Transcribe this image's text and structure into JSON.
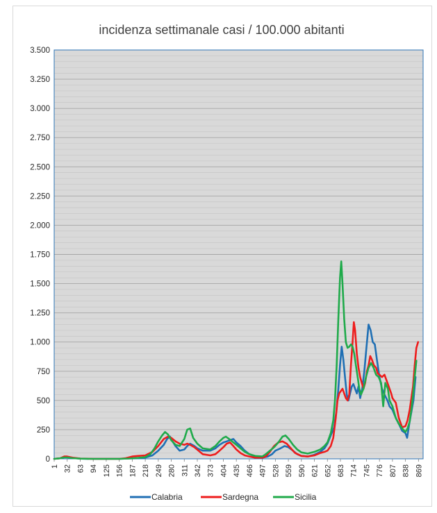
{
  "chart_data": {
    "type": "line",
    "title": "incidenza settimanale casi / 100.000 abitanti",
    "xlabel": "",
    "ylabel": "",
    "ylim": [
      0,
      3500
    ],
    "xlim": [
      1,
      880
    ],
    "y_ticks": [
      0,
      250,
      500,
      750,
      1000,
      1250,
      1500,
      1750,
      2000,
      2250,
      2500,
      2750,
      3000,
      3250,
      3500
    ],
    "y_tick_labels": [
      "0",
      "250",
      "500",
      "750",
      "1.000",
      "1.250",
      "1.500",
      "1.750",
      "2.000",
      "2.250",
      "2.500",
      "2.750",
      "3.000",
      "3.250",
      "3.500"
    ],
    "x_ticks": [
      1,
      32,
      63,
      94,
      125,
      156,
      187,
      218,
      249,
      280,
      311,
      342,
      373,
      404,
      435,
      466,
      497,
      528,
      559,
      590,
      621,
      652,
      683,
      714,
      745,
      776,
      807,
      838,
      869
    ],
    "x_tick_labels": [
      "1",
      "32",
      "63",
      "94",
      "125",
      "156",
      "187",
      "218",
      "249",
      "280",
      "311",
      "342",
      "373",
      "404",
      "435",
      "466",
      "497",
      "528",
      "559",
      "590",
      "621",
      "652",
      "683",
      "714",
      "745",
      "776",
      "807",
      "838",
      "869"
    ],
    "grid": true,
    "legend_position": "bottom",
    "series": [
      {
        "name": "Calabria",
        "color": "#1f6fb4",
        "points": [
          [
            1,
            0
          ],
          [
            15,
            5
          ],
          [
            25,
            15
          ],
          [
            32,
            15
          ],
          [
            45,
            8
          ],
          [
            63,
            2
          ],
          [
            94,
            0
          ],
          [
            125,
            0
          ],
          [
            156,
            0
          ],
          [
            180,
            3
          ],
          [
            200,
            5
          ],
          [
            218,
            10
          ],
          [
            235,
            30
          ],
          [
            249,
            70
          ],
          [
            262,
            120
          ],
          [
            270,
            170
          ],
          [
            277,
            190
          ],
          [
            283,
            150
          ],
          [
            290,
            110
          ],
          [
            300,
            70
          ],
          [
            311,
            80
          ],
          [
            318,
            110
          ],
          [
            325,
            130
          ],
          [
            335,
            110
          ],
          [
            342,
            90
          ],
          [
            355,
            70
          ],
          [
            373,
            70
          ],
          [
            385,
            90
          ],
          [
            395,
            120
          ],
          [
            404,
            140
          ],
          [
            412,
            150
          ],
          [
            420,
            160
          ],
          [
            428,
            170
          ],
          [
            435,
            140
          ],
          [
            445,
            110
          ],
          [
            455,
            70
          ],
          [
            466,
            40
          ],
          [
            480,
            20
          ],
          [
            497,
            10
          ],
          [
            510,
            20
          ],
          [
            520,
            40
          ],
          [
            528,
            70
          ],
          [
            540,
            90
          ],
          [
            550,
            110
          ],
          [
            559,
            100
          ],
          [
            570,
            70
          ],
          [
            580,
            40
          ],
          [
            590,
            25
          ],
          [
            605,
            20
          ],
          [
            621,
            35
          ],
          [
            635,
            60
          ],
          [
            645,
            90
          ],
          [
            652,
            130
          ],
          [
            660,
            200
          ],
          [
            668,
            270
          ],
          [
            673,
            400
          ],
          [
            678,
            600
          ],
          [
            682,
            800
          ],
          [
            686,
            960
          ],
          [
            690,
            850
          ],
          [
            694,
            700
          ],
          [
            698,
            550
          ],
          [
            702,
            500
          ],
          [
            706,
            560
          ],
          [
            710,
            620
          ],
          [
            714,
            640
          ],
          [
            718,
            600
          ],
          [
            722,
            560
          ],
          [
            726,
            620
          ],
          [
            730,
            520
          ],
          [
            735,
            600
          ],
          [
            740,
            750
          ],
          [
            745,
            950
          ],
          [
            750,
            1150
          ],
          [
            755,
            1100
          ],
          [
            760,
            1000
          ],
          [
            765,
            980
          ],
          [
            770,
            850
          ],
          [
            776,
            700
          ],
          [
            782,
            600
          ],
          [
            788,
            550
          ],
          [
            795,
            500
          ],
          [
            800,
            450
          ],
          [
            807,
            420
          ],
          [
            815,
            350
          ],
          [
            822,
            300
          ],
          [
            830,
            240
          ],
          [
            838,
            220
          ],
          [
            842,
            180
          ],
          [
            847,
            300
          ],
          [
            852,
            400
          ],
          [
            857,
            500
          ],
          [
            862,
            700
          ]
        ]
      },
      {
        "name": "Sardegna",
        "color": "#ee1c1c",
        "points": [
          [
            1,
            0
          ],
          [
            15,
            5
          ],
          [
            25,
            20
          ],
          [
            32,
            20
          ],
          [
            45,
            10
          ],
          [
            63,
            3
          ],
          [
            94,
            0
          ],
          [
            125,
            0
          ],
          [
            156,
            0
          ],
          [
            170,
            5
          ],
          [
            187,
            20
          ],
          [
            200,
            25
          ],
          [
            218,
            30
          ],
          [
            235,
            60
          ],
          [
            249,
            110
          ],
          [
            262,
            170
          ],
          [
            272,
            190
          ],
          [
            280,
            180
          ],
          [
            290,
            150
          ],
          [
            300,
            130
          ],
          [
            311,
            120
          ],
          [
            318,
            130
          ],
          [
            325,
            120
          ],
          [
            335,
            100
          ],
          [
            345,
            70
          ],
          [
            355,
            40
          ],
          [
            373,
            30
          ],
          [
            385,
            40
          ],
          [
            395,
            70
          ],
          [
            404,
            100
          ],
          [
            412,
            130
          ],
          [
            420,
            140
          ],
          [
            428,
            110
          ],
          [
            435,
            80
          ],
          [
            445,
            50
          ],
          [
            455,
            30
          ],
          [
            466,
            20
          ],
          [
            480,
            10
          ],
          [
            497,
            10
          ],
          [
            505,
            20
          ],
          [
            515,
            60
          ],
          [
            525,
            110
          ],
          [
            535,
            140
          ],
          [
            545,
            150
          ],
          [
            555,
            130
          ],
          [
            565,
            90
          ],
          [
            575,
            50
          ],
          [
            590,
            25
          ],
          [
            605,
            20
          ],
          [
            621,
            30
          ],
          [
            635,
            50
          ],
          [
            645,
            60
          ],
          [
            652,
            70
          ],
          [
            660,
            110
          ],
          [
            666,
            180
          ],
          [
            672,
            350
          ],
          [
            676,
            500
          ],
          [
            680,
            560
          ],
          [
            684,
            580
          ],
          [
            688,
            600
          ],
          [
            692,
            560
          ],
          [
            696,
            520
          ],
          [
            700,
            500
          ],
          [
            704,
            550
          ],
          [
            708,
            800
          ],
          [
            712,
            1000
          ],
          [
            715,
            1170
          ],
          [
            718,
            1100
          ],
          [
            722,
            900
          ],
          [
            726,
            780
          ],
          [
            730,
            700
          ],
          [
            734,
            650
          ],
          [
            738,
            600
          ],
          [
            742,
            650
          ],
          [
            746,
            750
          ],
          [
            750,
            800
          ],
          [
            754,
            880
          ],
          [
            758,
            850
          ],
          [
            763,
            800
          ],
          [
            768,
            780
          ],
          [
            772,
            730
          ],
          [
            776,
            720
          ],
          [
            782,
            700
          ],
          [
            788,
            720
          ],
          [
            795,
            650
          ],
          [
            800,
            600
          ],
          [
            804,
            560
          ],
          [
            807,
            520
          ],
          [
            815,
            480
          ],
          [
            822,
            350
          ],
          [
            830,
            270
          ],
          [
            838,
            280
          ],
          [
            843,
            330
          ],
          [
            848,
            420
          ],
          [
            852,
            520
          ],
          [
            856,
            620
          ],
          [
            860,
            800
          ],
          [
            864,
            950
          ],
          [
            868,
            1000
          ]
        ]
      },
      {
        "name": "Sicilia",
        "color": "#1faa4a",
        "points": [
          [
            1,
            0
          ],
          [
            15,
            5
          ],
          [
            25,
            12
          ],
          [
            32,
            12
          ],
          [
            45,
            6
          ],
          [
            63,
            2
          ],
          [
            94,
            0
          ],
          [
            125,
            0
          ],
          [
            156,
            0
          ],
          [
            180,
            3
          ],
          [
            200,
            8
          ],
          [
            218,
            15
          ],
          [
            230,
            40
          ],
          [
            240,
            90
          ],
          [
            249,
            150
          ],
          [
            258,
            200
          ],
          [
            265,
            230
          ],
          [
            272,
            210
          ],
          [
            280,
            160
          ],
          [
            290,
            120
          ],
          [
            300,
            110
          ],
          [
            311,
            170
          ],
          [
            318,
            250
          ],
          [
            325,
            260
          ],
          [
            332,
            180
          ],
          [
            342,
            130
          ],
          [
            355,
            90
          ],
          [
            373,
            80
          ],
          [
            385,
            110
          ],
          [
            395,
            150
          ],
          [
            404,
            180
          ],
          [
            410,
            190
          ],
          [
            418,
            170
          ],
          [
            428,
            140
          ],
          [
            435,
            120
          ],
          [
            445,
            90
          ],
          [
            455,
            60
          ],
          [
            466,
            40
          ],
          [
            480,
            25
          ],
          [
            497,
            20
          ],
          [
            505,
            40
          ],
          [
            515,
            70
          ],
          [
            525,
            100
          ],
          [
            535,
            140
          ],
          [
            545,
            190
          ],
          [
            552,
            200
          ],
          [
            560,
            170
          ],
          [
            570,
            120
          ],
          [
            580,
            80
          ],
          [
            590,
            55
          ],
          [
            605,
            45
          ],
          [
            621,
            60
          ],
          [
            635,
            80
          ],
          [
            645,
            110
          ],
          [
            652,
            140
          ],
          [
            660,
            220
          ],
          [
            666,
            330
          ],
          [
            670,
            500
          ],
          [
            674,
            800
          ],
          [
            678,
            1200
          ],
          [
            682,
            1550
          ],
          [
            685,
            1690
          ],
          [
            688,
            1500
          ],
          [
            692,
            1200
          ],
          [
            696,
            1000
          ],
          [
            700,
            950
          ],
          [
            704,
            960
          ],
          [
            708,
            980
          ],
          [
            712,
            960
          ],
          [
            716,
            900
          ],
          [
            720,
            800
          ],
          [
            724,
            700
          ],
          [
            728,
            600
          ],
          [
            732,
            550
          ],
          [
            738,
            600
          ],
          [
            744,
            700
          ],
          [
            750,
            780
          ],
          [
            756,
            820
          ],
          [
            762,
            780
          ],
          [
            768,
            720
          ],
          [
            774,
            700
          ],
          [
            780,
            650
          ],
          [
            785,
            450
          ],
          [
            790,
            650
          ],
          [
            796,
            600
          ],
          [
            800,
            500
          ],
          [
            807,
            450
          ],
          [
            815,
            350
          ],
          [
            822,
            300
          ],
          [
            830,
            260
          ],
          [
            838,
            230
          ],
          [
            843,
            260
          ],
          [
            848,
            320
          ],
          [
            852,
            420
          ],
          [
            856,
            550
          ],
          [
            860,
            700
          ],
          [
            864,
            840
          ]
        ]
      }
    ]
  }
}
